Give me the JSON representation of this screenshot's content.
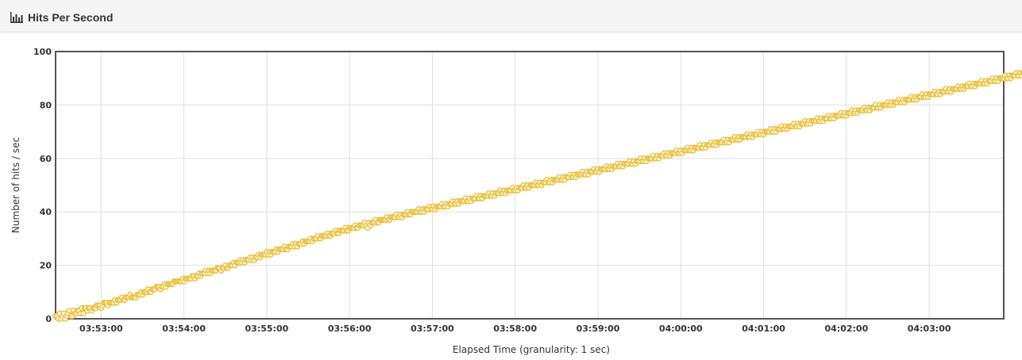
{
  "panel": {
    "title": "Hits Per Second",
    "icon": "bar-chart-icon"
  },
  "chart_data": {
    "type": "line",
    "title": "",
    "xlabel": "Elapsed Time (granularity: 1 sec)",
    "ylabel": "Number of hits / sec",
    "ylim": [
      0,
      100
    ],
    "yticks": [
      0,
      20,
      40,
      60,
      80,
      100
    ],
    "xlim": [
      "03:52:27",
      "04:03:54"
    ],
    "xticks": [
      "03:53:00",
      "03:54:00",
      "03:55:00",
      "03:56:00",
      "03:57:00",
      "03:58:00",
      "03:59:00",
      "04:00:00",
      "04:01:00",
      "04:02:00",
      "04:03:00"
    ],
    "grid": true,
    "legend": "none",
    "color": "#edc240",
    "series": [
      {
        "x_start": "03:52:27",
        "x_step_seconds": 1,
        "values": [
          1,
          1,
          0,
          2,
          0,
          1,
          2,
          0,
          1,
          2,
          3,
          1,
          1,
          3,
          2,
          2,
          3,
          3,
          2,
          4,
          2,
          4,
          4,
          3,
          4,
          4,
          3,
          4,
          4,
          4,
          5,
          5,
          5,
          4,
          5,
          6,
          6,
          6,
          5,
          6,
          6,
          6,
          6,
          7,
          6,
          7,
          7,
          7,
          8,
          7,
          7,
          8,
          8,
          8,
          9,
          8,
          8,
          8,
          8,
          9,
          9,
          9,
          10,
          9,
          10,
          10,
          10,
          11,
          10,
          10,
          11,
          11,
          11,
          12,
          12,
          12,
          11,
          12,
          12,
          13,
          12,
          13,
          13,
          13,
          13,
          13,
          14,
          14,
          14,
          14,
          14,
          14,
          15,
          14,
          15,
          15,
          15,
          15,
          15,
          16,
          16,
          15,
          16,
          16,
          17,
          16,
          17,
          17,
          17,
          18,
          17,
          18,
          17,
          18,
          18,
          18,
          18,
          19,
          19,
          19,
          18,
          19,
          19,
          20,
          19,
          19,
          20,
          20,
          20,
          21,
          20,
          21,
          21,
          21,
          22,
          21,
          22,
          21,
          22,
          22,
          22,
          23,
          22,
          23,
          22,
          23,
          23,
          24,
          23,
          24,
          24,
          24,
          24,
          25,
          24,
          25,
          24,
          25,
          25,
          25,
          26,
          25,
          26,
          26,
          26,
          26,
          27,
          26,
          26,
          27,
          27,
          27,
          28,
          27,
          28,
          27,
          28,
          28,
          28,
          29,
          28,
          29,
          29,
          29,
          29,
          30,
          29,
          30,
          30,
          30,
          31,
          30,
          30,
          31,
          31,
          31,
          31,
          32,
          31,
          31,
          32,
          32,
          32,
          33,
          32,
          32,
          33,
          33,
          33,
          33,
          34,
          33,
          33,
          34,
          34,
          34,
          34,
          35,
          34,
          34,
          35,
          35,
          35,
          35,
          36,
          35,
          34,
          36,
          35,
          36,
          36,
          36,
          37,
          36,
          36,
          37,
          37,
          37,
          37,
          37,
          38,
          37,
          37,
          38,
          38,
          38,
          38,
          39,
          38,
          38,
          39,
          38,
          39,
          39,
          39,
          40,
          39,
          39,
          40,
          40,
          40,
          40,
          40,
          41,
          40,
          40,
          41,
          40,
          41,
          41,
          41,
          42,
          41,
          41,
          42,
          41,
          42,
          42,
          42,
          42,
          43,
          42,
          42,
          43,
          42,
          43,
          43,
          43,
          44,
          43,
          43,
          44,
          43,
          44,
          44,
          44,
          44,
          45,
          44,
          44,
          45,
          44,
          45,
          45,
          45,
          46,
          45,
          45,
          46,
          45,
          46,
          46,
          46,
          46,
          47,
          46,
          46,
          47,
          46,
          47,
          47,
          47,
          48,
          47,
          47,
          48,
          47,
          48,
          48,
          48,
          48,
          49,
          48,
          48,
          49,
          48,
          49,
          49,
          49,
          50,
          49,
          49,
          50,
          49,
          50,
          50,
          50,
          50,
          51,
          50,
          50,
          51,
          50,
          51,
          51,
          51,
          52,
          51,
          51,
          52,
          51,
          52,
          52,
          52,
          52,
          53,
          52,
          52,
          53,
          52,
          53,
          53,
          53,
          54,
          53,
          53,
          54,
          53,
          54,
          54,
          54,
          54,
          55,
          54,
          54,
          55,
          54,
          55,
          55,
          55,
          56,
          55,
          55,
          56,
          55,
          56,
          56,
          56,
          56,
          57,
          56,
          56,
          57,
          56,
          57,
          57,
          57,
          58,
          57,
          57,
          58,
          57,
          58,
          58,
          58,
          58,
          59,
          58,
          58,
          59,
          58,
          59,
          59,
          59,
          60,
          59,
          59,
          60,
          59,
          60,
          60,
          60,
          60,
          61,
          60,
          60,
          61,
          60,
          61,
          61,
          61,
          62,
          61,
          61,
          62,
          61,
          62,
          62,
          62,
          62,
          63,
          62,
          62,
          63,
          62,
          63,
          63,
          63,
          64,
          63,
          63,
          64,
          63,
          64,
          64,
          64,
          64,
          65,
          64,
          64,
          65,
          64,
          65,
          65,
          65,
          66,
          65,
          65,
          66,
          65,
          66,
          66,
          66,
          66,
          67,
          66,
          66,
          67,
          66,
          67,
          67,
          67,
          68,
          67,
          67,
          68,
          67,
          68,
          68,
          68,
          68,
          69,
          68,
          68,
          69,
          68,
          69,
          69,
          69,
          70,
          69,
          69,
          70,
          69,
          70,
          70,
          70,
          70,
          71,
          70,
          70,
          71,
          70,
          71,
          71,
          71,
          72,
          71,
          71,
          72,
          71,
          72,
          72,
          72,
          72,
          73,
          72,
          72,
          73,
          72,
          73,
          73,
          73,
          74,
          73,
          73,
          74,
          73,
          74,
          74,
          74,
          74,
          75,
          74,
          74,
          75,
          74,
          75,
          75,
          75,
          76,
          75,
          75,
          76,
          75,
          76,
          76,
          76,
          76,
          77,
          76,
          76,
          77,
          76,
          77,
          77,
          77,
          78,
          77,
          77,
          78,
          77,
          78,
          78,
          78,
          78,
          79,
          78,
          78,
          79,
          78,
          79,
          79,
          79,
          80,
          79,
          79,
          80,
          79,
          80,
          80,
          80,
          80,
          81,
          80,
          80,
          81,
          80,
          81,
          81,
          81,
          82,
          81,
          81,
          82,
          81,
          82,
          82,
          82,
          82,
          83,
          82,
          82,
          83,
          82,
          83,
          83,
          83,
          84,
          83,
          83,
          84,
          83,
          84,
          84,
          84,
          84,
          85,
          84,
          84,
          85,
          84,
          85,
          85,
          85,
          86,
          85,
          85,
          86,
          85,
          86,
          86,
          86,
          86,
          87,
          86,
          86,
          87,
          86,
          87,
          87,
          87,
          88,
          87,
          87,
          88,
          87,
          88,
          88,
          88,
          88,
          89,
          88,
          88,
          89,
          88,
          89,
          89,
          89,
          90,
          89,
          89,
          90,
          89,
          90,
          90,
          90,
          90,
          91,
          90,
          90,
          91,
          90,
          91,
          91,
          91,
          92,
          91,
          91,
          92,
          91,
          92,
          92,
          92,
          92,
          93,
          92,
          92,
          93,
          92,
          93,
          93,
          93,
          94,
          93,
          93,
          94,
          93,
          94,
          94,
          94,
          94,
          95,
          94,
          94,
          95,
          94,
          95,
          95,
          95,
          96,
          95,
          95,
          96,
          95,
          96,
          96,
          96,
          96,
          97,
          96,
          96,
          97,
          96,
          97,
          97,
          97,
          98,
          97,
          97,
          98,
          97,
          98,
          98,
          98,
          98
        ]
      }
    ]
  }
}
